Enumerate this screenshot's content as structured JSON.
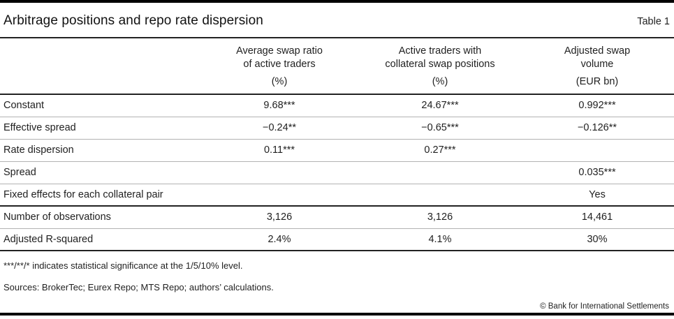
{
  "header": {
    "title": "Arbitrage positions and repo rate dispersion",
    "table_label": "Table 1"
  },
  "table": {
    "columns": [
      {
        "line1": "Average swap ratio",
        "line2": "of active traders",
        "unit": "(%)"
      },
      {
        "line1": "Active traders with",
        "line2": "collateral swap positions",
        "unit": "(%)"
      },
      {
        "line1": "Adjusted swap",
        "line2": "volume",
        "unit": "(EUR bn)"
      }
    ],
    "rows": [
      {
        "label": "Constant",
        "values": [
          "9.68***",
          "24.67***",
          "0.992***"
        ]
      },
      {
        "label": "Effective spread",
        "values": [
          "−0.24**",
          "−0.65***",
          "−0.126**"
        ]
      },
      {
        "label": "Rate dispersion",
        "values": [
          "0.11***",
          "0.27***",
          ""
        ]
      },
      {
        "label": "Spread",
        "values": [
          "",
          "",
          "0.035***"
        ]
      },
      {
        "label": "Fixed effects for each collateral pair",
        "values": [
          "",
          "",
          "Yes"
        ]
      },
      {
        "label": "Number of observations",
        "values": [
          "3,126",
          "3,126",
          "14,461"
        ]
      },
      {
        "label": "Adjusted R-squared",
        "values": [
          "2.4%",
          "4.1%",
          "30%"
        ]
      }
    ]
  },
  "footnotes": {
    "significance": "***/**/* indicates statistical significance at the 1/5/10% level.",
    "sources": "Sources: BrokerTec; Eurex Repo; MTS Repo; authors’ calculations.",
    "copyright": "© Bank for International Settlements"
  }
}
